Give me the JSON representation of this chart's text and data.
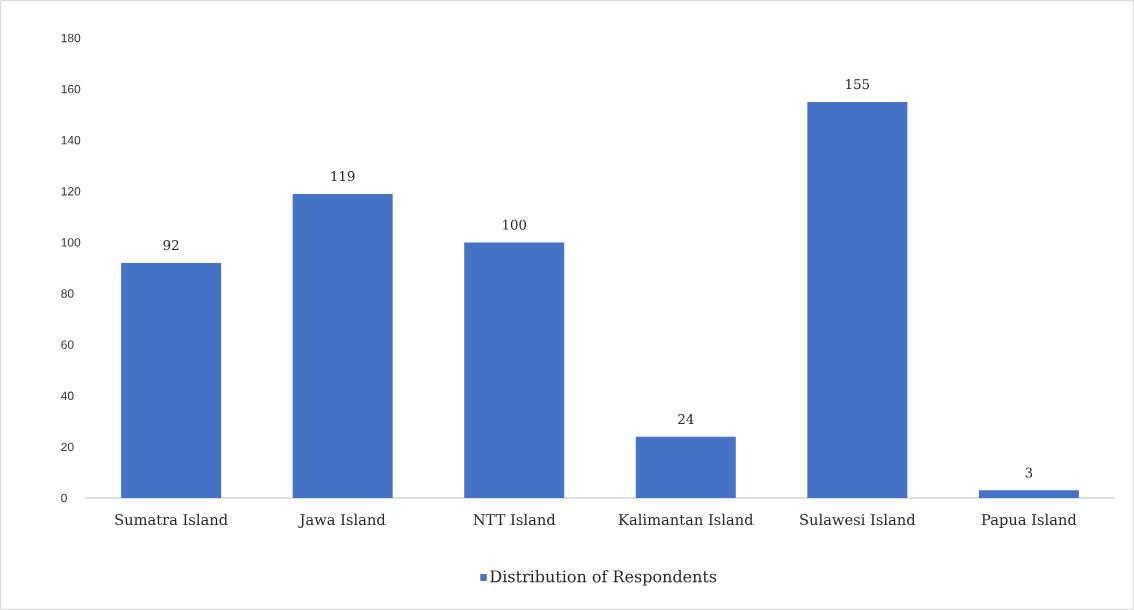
{
  "chart_data": {
    "type": "bar",
    "categories": [
      "Sumatra Island",
      "Jawa Island",
      "NTT Island",
      "Kalimantan Island",
      "Sulawesi Island",
      "Papua Island"
    ],
    "series": [
      {
        "name": "Distribution of Respondents",
        "color": "#4472c4",
        "values": [
          92,
          119,
          100,
          24,
          155,
          3
        ]
      }
    ],
    "ylim": [
      0,
      180
    ],
    "yticks": [
      0,
      20,
      40,
      60,
      80,
      100,
      120,
      140,
      160,
      180
    ],
    "data_labels": true,
    "grid": false,
    "legend": "bottom"
  }
}
